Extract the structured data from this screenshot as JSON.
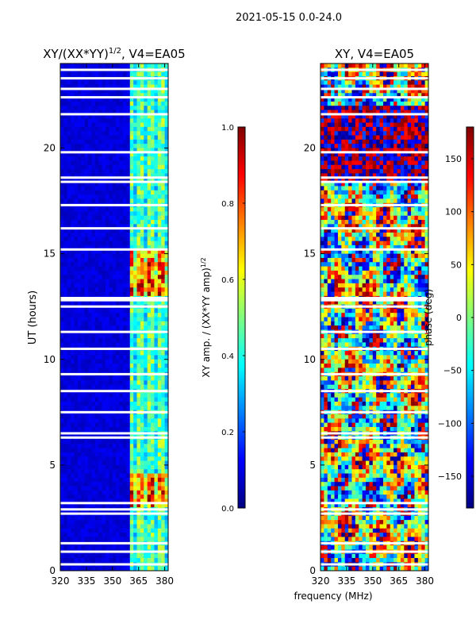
{
  "figure": {
    "suptitle": "2021-05-15 0.0-24.0",
    "shared_xlabel": "frequency (MHz)"
  },
  "colors": {
    "jet": [
      "#00007f",
      "#0000ff",
      "#007fff",
      "#00ffff",
      "#7fff7f",
      "#ffff00",
      "#ff7f00",
      "#ff0000",
      "#7f0000"
    ],
    "gap": "#ffffff",
    "axis": "#000000"
  },
  "chart_data": [
    {
      "type": "heatmap",
      "title_main": "XY/(XX*YY)",
      "title_exp": "1/2",
      "title_rest": ", V4=EA05",
      "xlabel": "",
      "ylabel": "UT (hours)",
      "xlim": [
        320,
        382
      ],
      "ylim": [
        0,
        24
      ],
      "xticks": [
        320,
        335,
        350,
        365,
        380
      ],
      "yticks": [
        0,
        5,
        10,
        15,
        20
      ],
      "colorbar": {
        "label_main": "XY amp. / (XX*YY amp)",
        "label_exp": "1/2",
        "range": [
          0.0,
          1.0
        ],
        "ticks": [
          "0.0",
          "0.2",
          "0.4",
          "0.6",
          "0.8",
          "1.0"
        ],
        "tick_values": [
          0.0,
          0.2,
          0.4,
          0.6,
          0.8,
          1.0
        ]
      },
      "hot_band_mhz": [
        360,
        382
      ],
      "hot_rows_hours": [
        [
          3.0,
          4.5
        ],
        [
          13.0,
          15.2
        ]
      ],
      "flagged_hours": [
        0.3,
        0.9,
        1.3,
        2.7,
        2.9,
        3.2,
        6.3,
        6.5,
        7.5,
        8.5,
        9.3,
        10.5,
        11.3,
        12.5,
        12.8,
        12.9,
        15.2,
        16.2,
        17.3,
        18.4,
        18.6,
        19.8,
        21.6,
        22.4,
        22.8,
        23.3,
        23.7
      ]
    },
    {
      "type": "heatmap",
      "title_main": "XY, V4=EA05",
      "title_exp": "",
      "title_rest": "",
      "xlabel": "frequency (MHz)",
      "ylabel": "",
      "xlim": [
        320,
        382
      ],
      "ylim": [
        0,
        24
      ],
      "xticks": [
        320,
        335,
        350,
        365,
        380
      ],
      "yticks": [
        0,
        5,
        10,
        15,
        20
      ],
      "colorbar": {
        "label_main": "phase (deg)",
        "label_exp": "",
        "range": [
          -180,
          180
        ],
        "ticks": [
          "−150",
          "−100",
          "−50",
          "0",
          "50",
          "100",
          "150"
        ],
        "tick_values": [
          -150,
          -100,
          -50,
          0,
          50,
          100,
          150
        ]
      },
      "flagged_hours": [
        0.3,
        0.9,
        1.3,
        2.7,
        2.9,
        3.2,
        6.3,
        6.5,
        7.5,
        8.5,
        9.3,
        10.5,
        11.3,
        12.5,
        12.8,
        12.9,
        15.2,
        16.2,
        17.3,
        18.4,
        18.6,
        19.8,
        21.6,
        22.4,
        22.8,
        23.3,
        23.7
      ]
    }
  ]
}
